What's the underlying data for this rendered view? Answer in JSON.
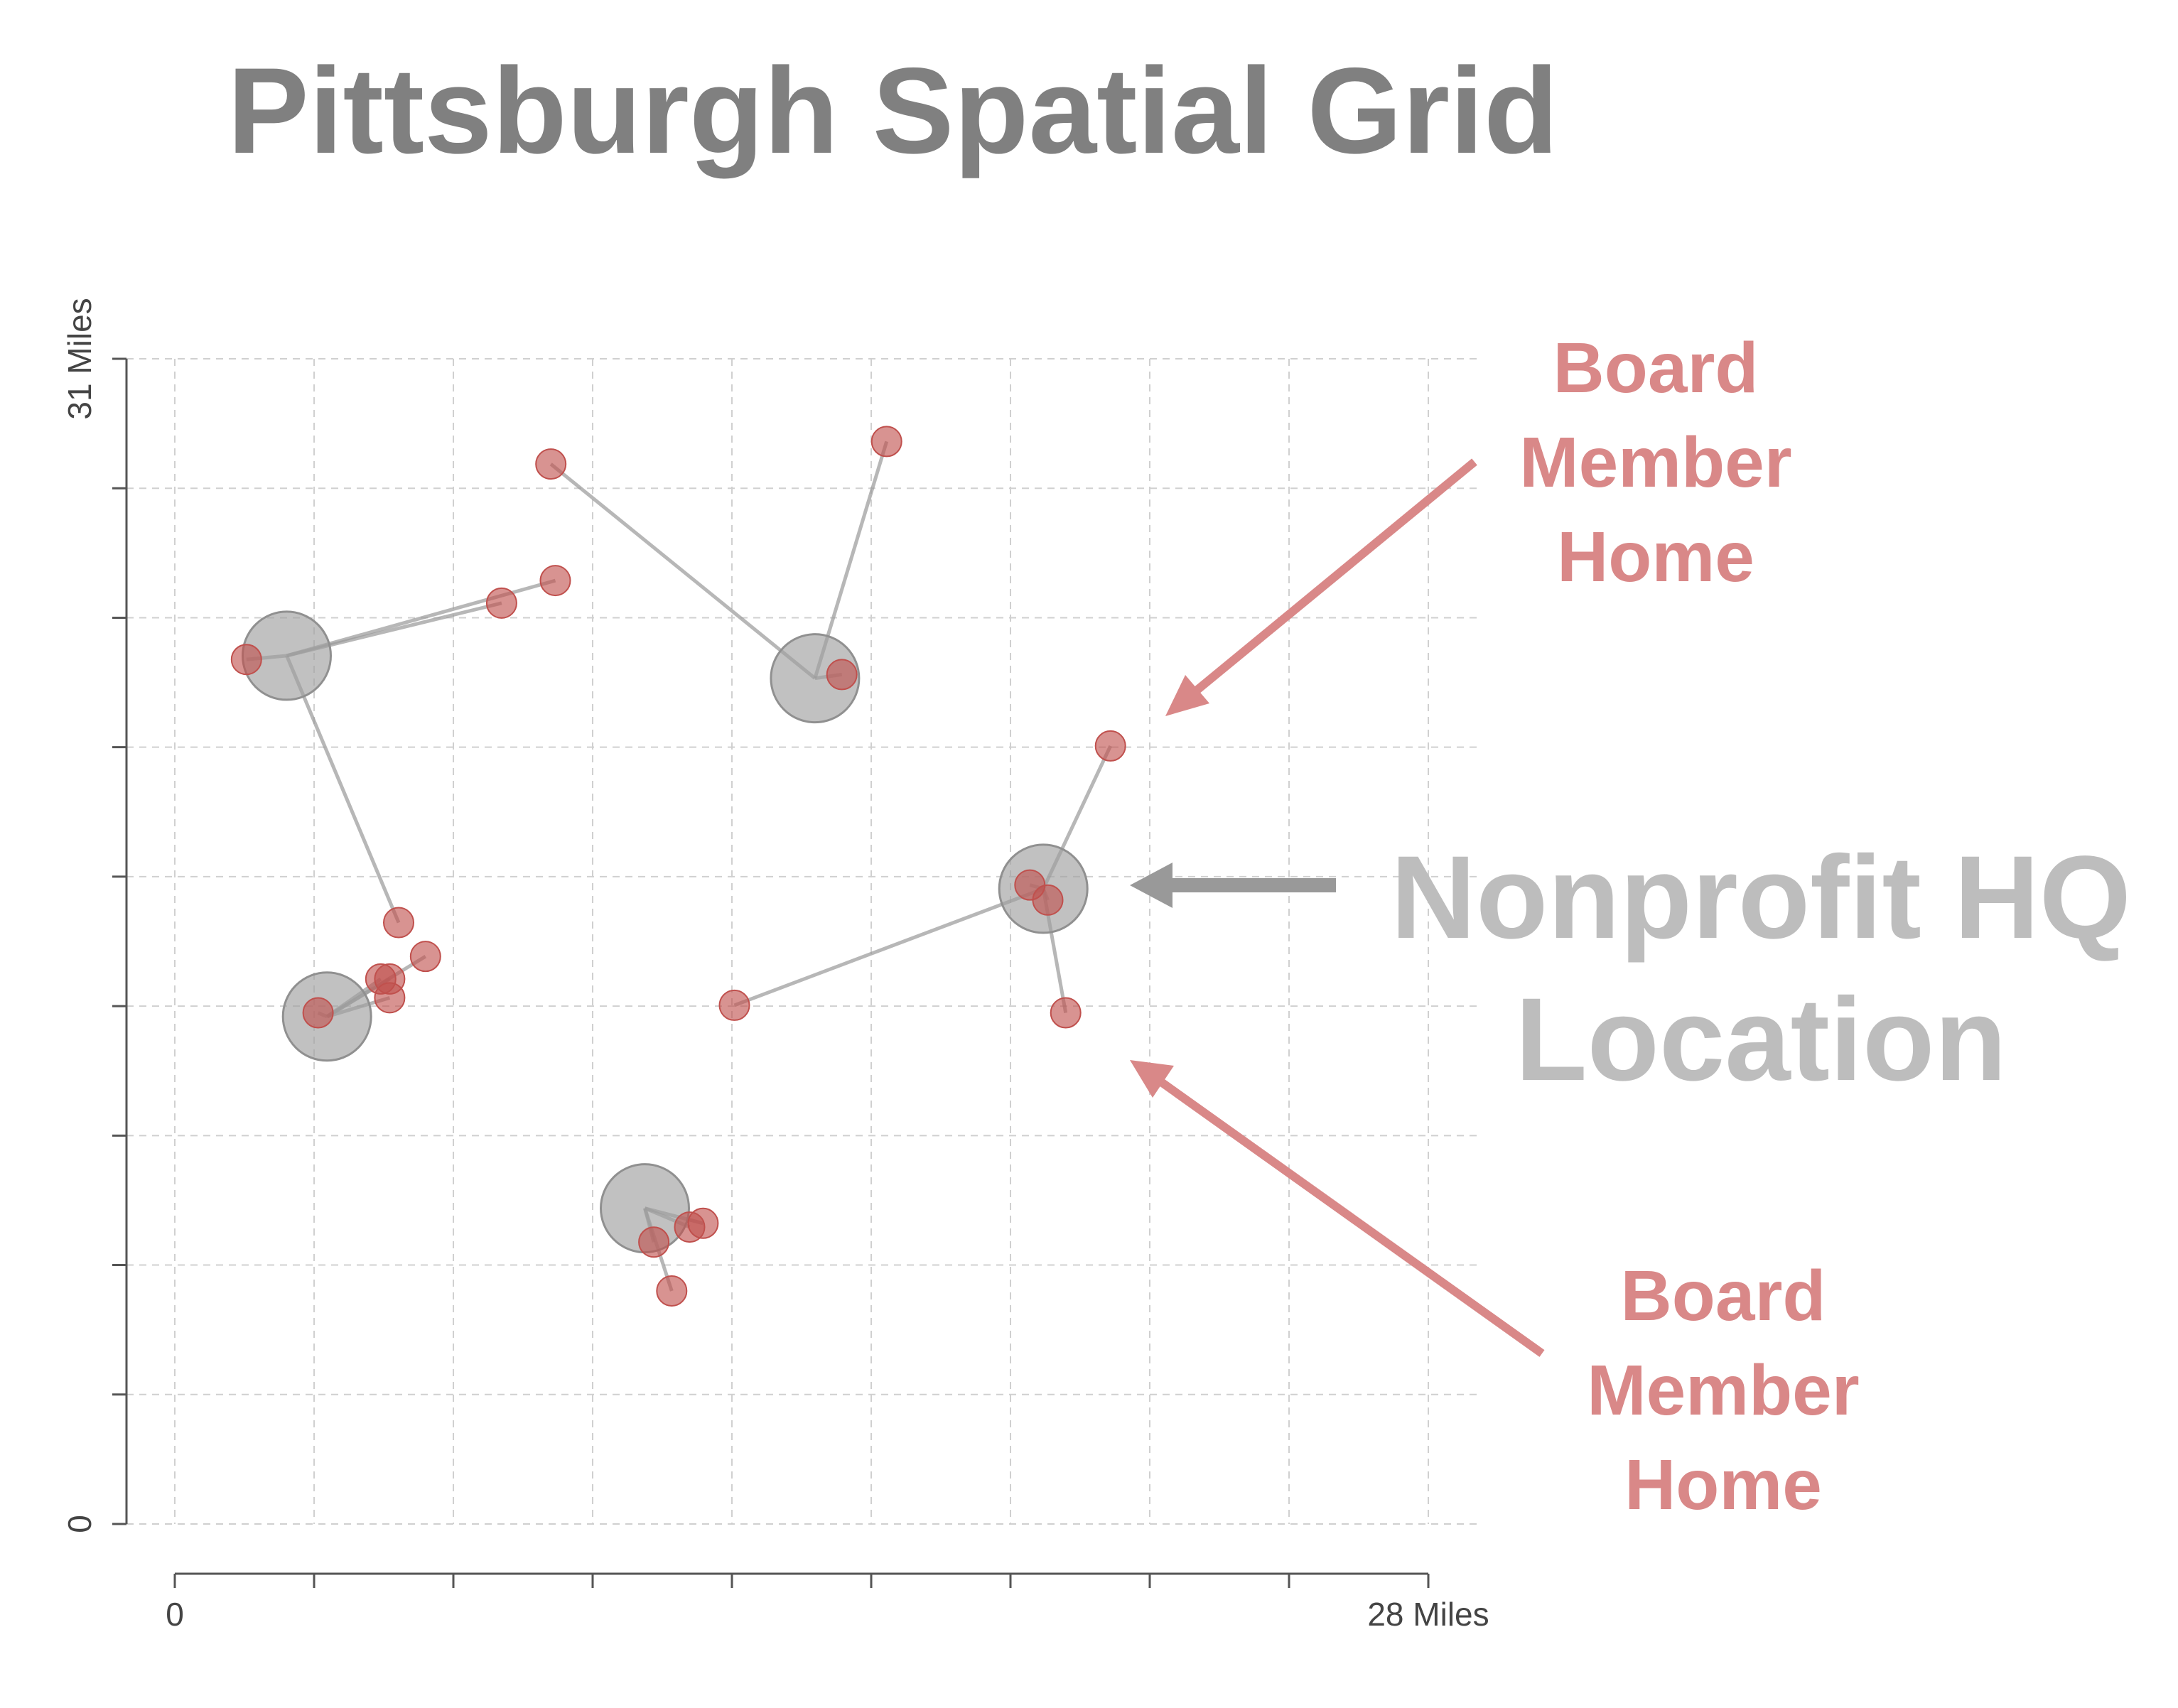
{
  "colors": {
    "title": "#808080",
    "hq_fill": "#a0a0a0",
    "home_fill": "#c0504d",
    "annotation_board": "#d98888",
    "annotation_hq": "#bdbdbd",
    "grid": "#d0d0d0"
  },
  "chart_data": {
    "type": "scatter",
    "title": "Pittsburgh Spatial Grid",
    "xlim": [
      0,
      28
    ],
    "ylim": [
      0,
      31
    ],
    "x_tick_labels": [
      "0",
      "28 Miles"
    ],
    "y_tick_labels": [
      "0",
      "31 Miles"
    ],
    "grid": true,
    "groups": [
      {
        "hq": [
          2.5,
          23.1
        ],
        "homes": [
          [
            1.6,
            23.0
          ],
          [
            7.3,
            24.5
          ],
          [
            8.5,
            25.1
          ],
          [
            5.0,
            16.0
          ]
        ]
      },
      {
        "hq": [
          14.3,
          22.5
        ],
        "homes": [
          [
            8.4,
            28.2
          ],
          [
            15.9,
            28.8
          ],
          [
            14.9,
            22.6
          ]
        ]
      },
      {
        "hq": [
          19.4,
          16.9
        ],
        "homes": [
          [
            20.9,
            20.7
          ],
          [
            19.1,
            17.0
          ],
          [
            19.5,
            16.6
          ],
          [
            12.5,
            13.8
          ],
          [
            19.9,
            13.6
          ]
        ]
      },
      {
        "hq": [
          3.4,
          13.5
        ],
        "homes": [
          [
            5.6,
            15.1
          ],
          [
            4.6,
            14.5
          ],
          [
            4.8,
            14.5
          ],
          [
            4.8,
            14.0
          ],
          [
            3.2,
            13.6
          ]
        ]
      },
      {
        "hq": [
          10.5,
          8.4
        ],
        "homes": [
          [
            10.7,
            7.5
          ],
          [
            11.5,
            7.9
          ],
          [
            11.8,
            8.0
          ],
          [
            11.1,
            6.2
          ]
        ]
      }
    ]
  },
  "annotations": {
    "board_top": [
      "Board",
      "Member",
      "Home"
    ],
    "board_bottom": [
      "Board",
      "Member",
      "Home"
    ],
    "hq": [
      "Nonprofit HQ",
      "Location"
    ]
  }
}
